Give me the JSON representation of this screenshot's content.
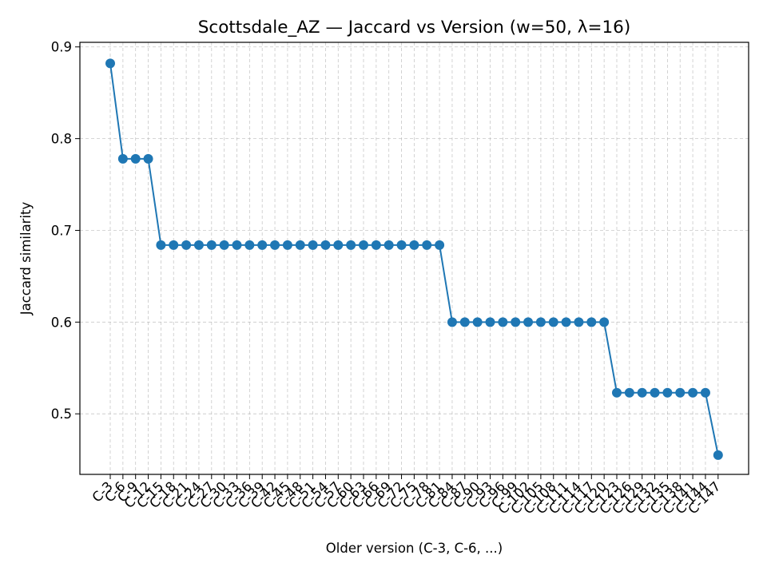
{
  "chart_data": {
    "type": "line",
    "title": "Scottsdale_AZ — Jaccard vs Version (w=50, λ=16)",
    "xlabel": "Older version (C-3, C-6, ...)",
    "ylabel": "Jaccard similarity",
    "categories": [
      "C-3",
      "C-6",
      "C-9",
      "C-12",
      "C-15",
      "C-18",
      "C-21",
      "C-24",
      "C-27",
      "C-30",
      "C-33",
      "C-36",
      "C-39",
      "C-42",
      "C-45",
      "C-48",
      "C-51",
      "C-54",
      "C-57",
      "C-60",
      "C-63",
      "C-66",
      "C-69",
      "C-72",
      "C-75",
      "C-78",
      "C-81",
      "C-84",
      "C-87",
      "C-90",
      "C-93",
      "C-96",
      "C-99",
      "C-102",
      "C-105",
      "C-108",
      "C-111",
      "C-114",
      "C-117",
      "C-120",
      "C-123",
      "C-126",
      "C-129",
      "C-132",
      "C-135",
      "C-138",
      "C-141",
      "C-144",
      "C-147"
    ],
    "series": [
      {
        "values": [
          0.882,
          0.778,
          0.778,
          0.778,
          0.684,
          0.684,
          0.684,
          0.684,
          0.684,
          0.684,
          0.684,
          0.684,
          0.684,
          0.684,
          0.684,
          0.684,
          0.684,
          0.684,
          0.684,
          0.684,
          0.684,
          0.684,
          0.684,
          0.684,
          0.684,
          0.684,
          0.684,
          0.6,
          0.6,
          0.6,
          0.6,
          0.6,
          0.6,
          0.6,
          0.6,
          0.6,
          0.6,
          0.6,
          0.6,
          0.6,
          0.523,
          0.523,
          0.523,
          0.523,
          0.523,
          0.523,
          0.523,
          0.523,
          0.455
        ],
        "color": "#1f77b4"
      }
    ],
    "yticks": [
      0.5,
      0.6,
      0.7,
      0.8,
      0.9
    ],
    "ylim": [
      0.434,
      0.905
    ],
    "grid": true,
    "grid_style": "dashed",
    "legend": false
  }
}
